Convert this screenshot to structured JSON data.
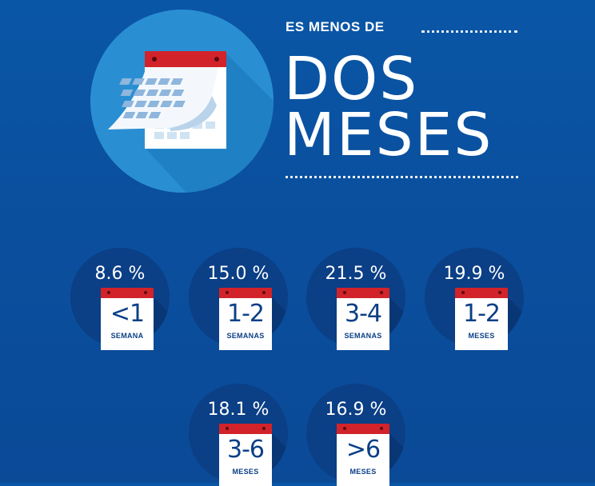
{
  "header": {
    "subtitle": "ES MENOS DE",
    "title_line1": "DOS",
    "title_line2": "MESES"
  },
  "colors": {
    "background": "#0a52a1",
    "hero_circle": "#2a8fd2",
    "stat_circle": "#0b3f86",
    "calendar_red": "#d2232a"
  },
  "icons": {
    "hero": "calendar-page-flip-icon",
    "stat": "calendar-icon"
  },
  "stats": [
    {
      "percent": "8.6 %",
      "range": "<1",
      "unit": "SEMANA"
    },
    {
      "percent": "15.0 %",
      "range": "1-2",
      "unit": "SEMANAS"
    },
    {
      "percent": "21.5 %",
      "range": "3-4",
      "unit": "SEMANAS"
    },
    {
      "percent": "19.9 %",
      "range": "1-2",
      "unit": "MESES"
    },
    {
      "percent": "18.1 %",
      "range": "3-6",
      "unit": "MESES"
    },
    {
      "percent": "16.9 %",
      "range": ">6",
      "unit": "MESES"
    }
  ]
}
